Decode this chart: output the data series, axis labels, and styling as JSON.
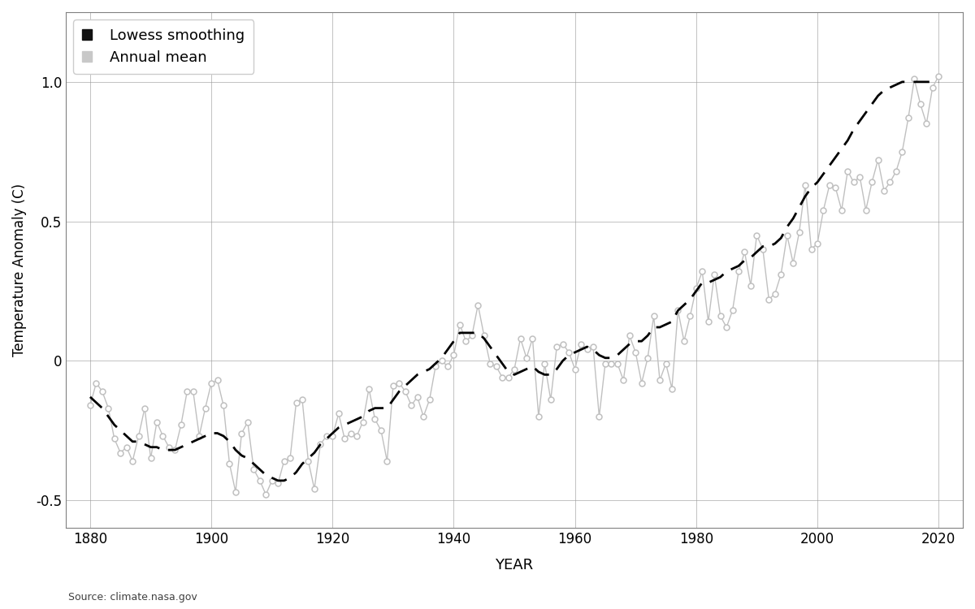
{
  "xlabel": "YEAR",
  "ylabel": "Temperature Anomaly (C)",
  "source": "Source: climate.nasa.gov",
  "legend_entries": [
    "Lowess smoothing",
    "Annual mean"
  ],
  "annual_years": [
    1880,
    1881,
    1882,
    1883,
    1884,
    1885,
    1886,
    1887,
    1888,
    1889,
    1890,
    1891,
    1892,
    1893,
    1894,
    1895,
    1896,
    1897,
    1898,
    1899,
    1900,
    1901,
    1902,
    1903,
    1904,
    1905,
    1906,
    1907,
    1908,
    1909,
    1910,
    1911,
    1912,
    1913,
    1914,
    1915,
    1916,
    1917,
    1918,
    1919,
    1920,
    1921,
    1922,
    1923,
    1924,
    1925,
    1926,
    1927,
    1928,
    1929,
    1930,
    1931,
    1932,
    1933,
    1934,
    1935,
    1936,
    1937,
    1938,
    1939,
    1940,
    1941,
    1942,
    1943,
    1944,
    1945,
    1946,
    1947,
    1948,
    1949,
    1950,
    1951,
    1952,
    1953,
    1954,
    1955,
    1956,
    1957,
    1958,
    1959,
    1960,
    1961,
    1962,
    1963,
    1964,
    1965,
    1966,
    1967,
    1968,
    1969,
    1970,
    1971,
    1972,
    1973,
    1974,
    1975,
    1976,
    1977,
    1978,
    1979,
    1980,
    1981,
    1982,
    1983,
    1984,
    1985,
    1986,
    1987,
    1988,
    1989,
    1990,
    1991,
    1992,
    1993,
    1994,
    1995,
    1996,
    1997,
    1998,
    1999,
    2000,
    2001,
    2002,
    2003,
    2004,
    2005,
    2006,
    2007,
    2008,
    2009,
    2010,
    2011,
    2012,
    2013,
    2014,
    2015,
    2016,
    2017,
    2018,
    2019,
    2020
  ],
  "annual_values": [
    -0.16,
    -0.08,
    -0.11,
    -0.17,
    -0.28,
    -0.33,
    -0.31,
    -0.36,
    -0.27,
    -0.17,
    -0.35,
    -0.22,
    -0.27,
    -0.31,
    -0.32,
    -0.23,
    -0.11,
    -0.11,
    -0.27,
    -0.17,
    -0.08,
    -0.07,
    -0.16,
    -0.37,
    -0.47,
    -0.26,
    -0.22,
    -0.39,
    -0.43,
    -0.48,
    -0.43,
    -0.44,
    -0.36,
    -0.35,
    -0.15,
    -0.14,
    -0.36,
    -0.46,
    -0.3,
    -0.27,
    -0.27,
    -0.19,
    -0.28,
    -0.26,
    -0.27,
    -0.22,
    -0.1,
    -0.21,
    -0.25,
    -0.36,
    -0.09,
    -0.08,
    -0.11,
    -0.16,
    -0.13,
    -0.2,
    -0.14,
    -0.02,
    -0.0,
    -0.02,
    0.02,
    0.13,
    0.07,
    0.09,
    0.2,
    0.09,
    -0.01,
    -0.02,
    -0.06,
    -0.06,
    -0.03,
    0.08,
    0.01,
    0.08,
    -0.2,
    -0.01,
    -0.14,
    0.05,
    0.06,
    0.03,
    -0.03,
    0.06,
    0.04,
    0.05,
    -0.2,
    -0.01,
    -0.01,
    -0.01,
    -0.07,
    0.09,
    0.03,
    -0.08,
    0.01,
    0.16,
    -0.07,
    -0.01,
    -0.1,
    0.18,
    0.07,
    0.16,
    0.26,
    0.32,
    0.14,
    0.31,
    0.16,
    0.12,
    0.18,
    0.32,
    0.39,
    0.27,
    0.45,
    0.4,
    0.22,
    0.24,
    0.31,
    0.45,
    0.35,
    0.46,
    0.63,
    0.4,
    0.42,
    0.54,
    0.63,
    0.62,
    0.54,
    0.68,
    0.64,
    0.66,
    0.54,
    0.64,
    0.72,
    0.61,
    0.64,
    0.68,
    0.75,
    0.87,
    1.01,
    0.92,
    0.85,
    0.98,
    1.02
  ],
  "lowess_values": [
    -0.13,
    -0.15,
    -0.17,
    -0.2,
    -0.23,
    -0.25,
    -0.27,
    -0.29,
    -0.29,
    -0.3,
    -0.31,
    -0.31,
    -0.32,
    -0.32,
    -0.32,
    -0.31,
    -0.3,
    -0.29,
    -0.28,
    -0.27,
    -0.26,
    -0.26,
    -0.27,
    -0.29,
    -0.32,
    -0.34,
    -0.35,
    -0.37,
    -0.39,
    -0.41,
    -0.42,
    -0.43,
    -0.43,
    -0.42,
    -0.4,
    -0.37,
    -0.35,
    -0.33,
    -0.3,
    -0.28,
    -0.26,
    -0.24,
    -0.23,
    -0.22,
    -0.21,
    -0.2,
    -0.18,
    -0.17,
    -0.17,
    -0.17,
    -0.14,
    -0.11,
    -0.09,
    -0.07,
    -0.05,
    -0.04,
    -0.03,
    -0.01,
    0.01,
    0.04,
    0.07,
    0.1,
    0.1,
    0.1,
    0.1,
    0.08,
    0.05,
    0.02,
    -0.01,
    -0.04,
    -0.05,
    -0.04,
    -0.03,
    -0.02,
    -0.04,
    -0.05,
    -0.05,
    -0.03,
    0.0,
    0.02,
    0.03,
    0.04,
    0.05,
    0.04,
    0.02,
    0.01,
    0.01,
    0.02,
    0.04,
    0.06,
    0.07,
    0.07,
    0.09,
    0.12,
    0.12,
    0.13,
    0.14,
    0.18,
    0.2,
    0.22,
    0.25,
    0.28,
    0.28,
    0.29,
    0.3,
    0.32,
    0.33,
    0.34,
    0.36,
    0.37,
    0.39,
    0.41,
    0.41,
    0.42,
    0.44,
    0.48,
    0.51,
    0.55,
    0.59,
    0.62,
    0.64,
    0.67,
    0.7,
    0.73,
    0.76,
    0.79,
    0.83,
    0.86,
    0.89,
    0.92,
    0.95,
    0.97,
    0.98,
    0.99,
    1.0,
    1.0,
    1.0,
    1.0,
    1.0,
    1.0,
    1.0
  ],
  "annual_color": "#c0c0c0",
  "lowess_color": "#000000",
  "background_color": "#ffffff",
  "grid_color": "#999999",
  "ylim": [
    -0.6,
    1.25
  ],
  "yticks": [
    -0.5,
    0.0,
    0.5,
    1.0
  ],
  "xlim": [
    1876,
    2024
  ],
  "xticks": [
    1880,
    1900,
    1920,
    1940,
    1960,
    1980,
    2000,
    2020
  ],
  "legend_square_color": "#111111",
  "legend_patch_color": "#c8c8c8"
}
